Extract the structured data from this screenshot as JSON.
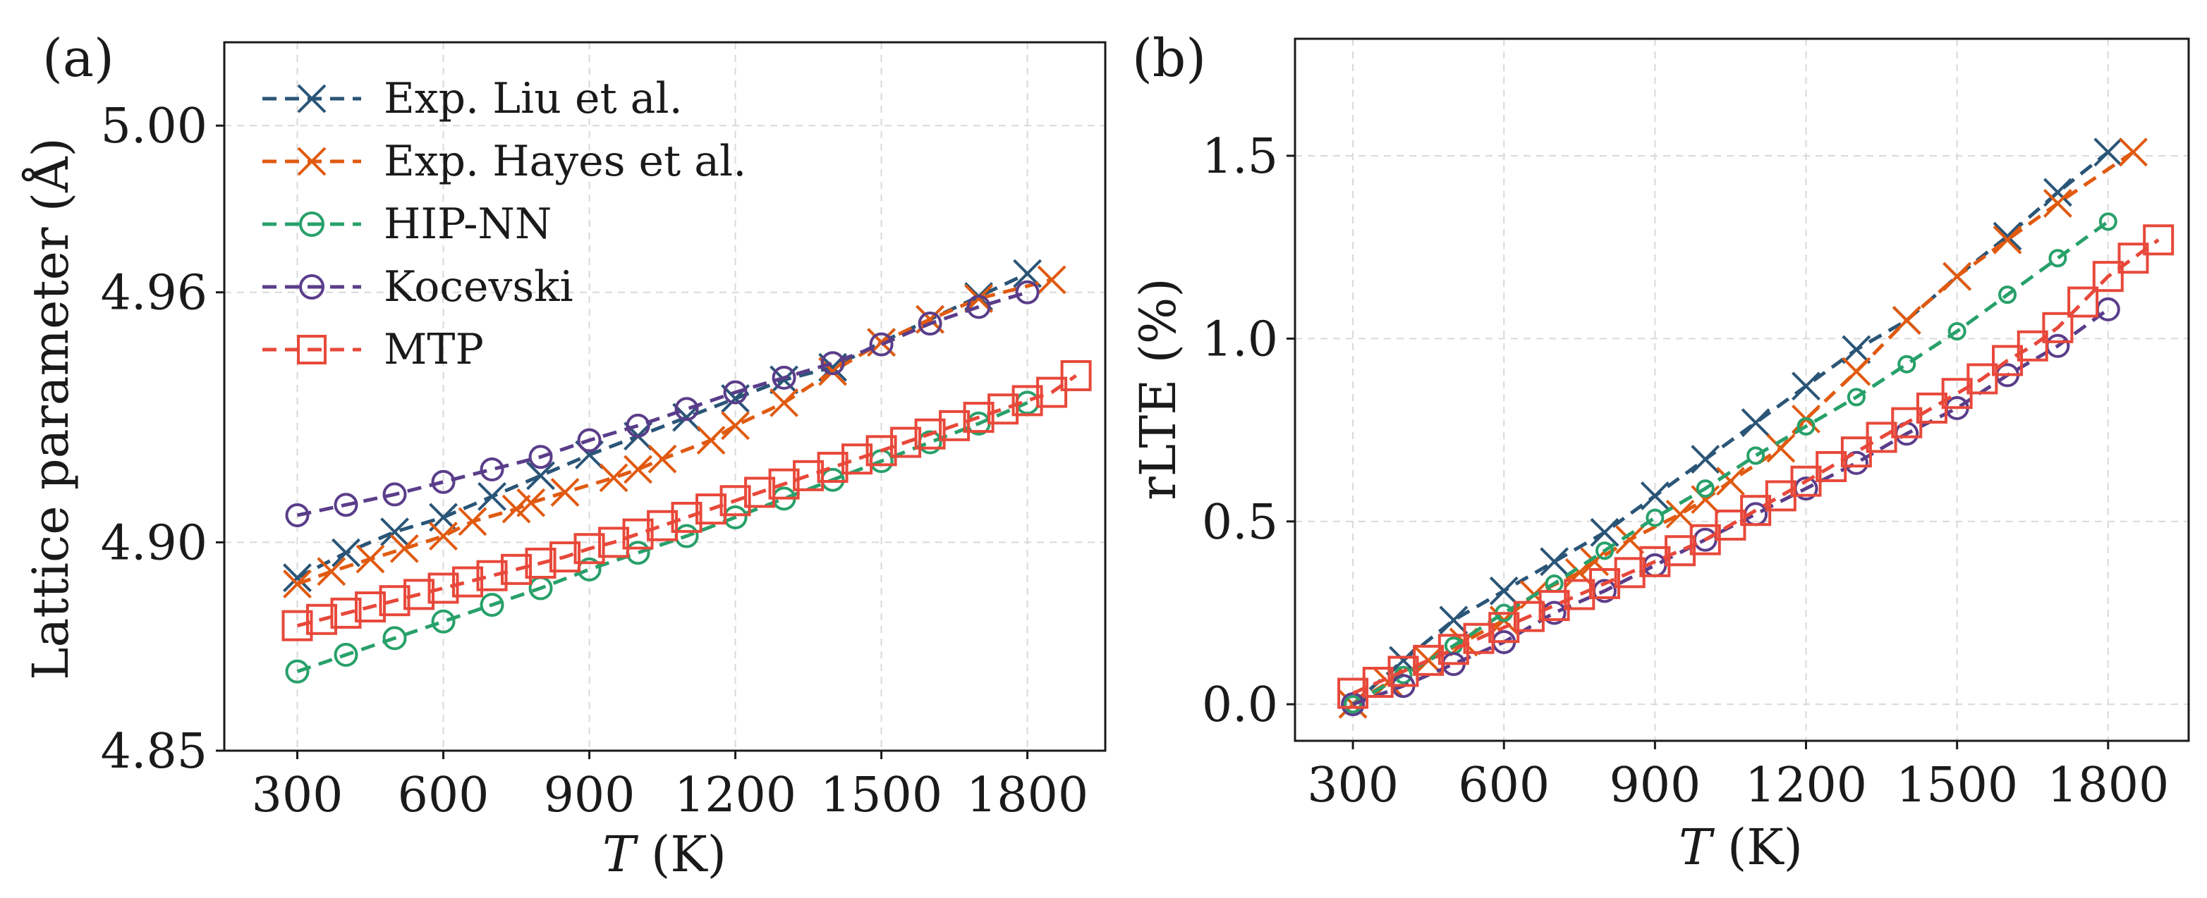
{
  "chart_data": [
    {
      "type": "line",
      "panel": "(a)",
      "title": "",
      "xlabel_var": "T",
      "xlabel_unit": " (K)",
      "ylabel": "Lattice parameter (Å)",
      "xlim": [
        150,
        1960
      ],
      "ylim": [
        4.85,
        5.02
      ],
      "xticks": [
        300,
        600,
        900,
        1200,
        1500,
        1800
      ],
      "xtick_labels": [
        "300",
        "600",
        "900",
        "1200",
        "1500",
        "1800"
      ],
      "yticks": [
        4.85,
        4.9,
        4.96,
        5.0
      ],
      "ytick_labels": [
        "4.85",
        "4.90",
        "4.96",
        "5.00"
      ],
      "grid": true,
      "legend_position": "top-left",
      "series": [
        {
          "name": "Exp. Liu et al.",
          "color": "#2a5577",
          "marker": "x",
          "markersize": 38,
          "dash": true,
          "x": [
            300,
            400,
            500,
            600,
            700,
            800,
            900,
            1000,
            1100,
            1200,
            1300,
            1400,
            1500,
            1600,
            1700,
            1800
          ],
          "y": [
            4.8915,
            4.8975,
            4.9025,
            4.906,
            4.911,
            4.916,
            4.921,
            4.9255,
            4.93,
            4.9345,
            4.939,
            4.942,
            4.948,
            4.9535,
            4.959,
            4.9645
          ]
        },
        {
          "name": "Exp. Hayes et al.",
          "color": "#e05a10",
          "marker": "x",
          "markersize": 38,
          "dash": true,
          "x": [
            300,
            370,
            450,
            520,
            600,
            660,
            750,
            780,
            850,
            950,
            1000,
            1050,
            1150,
            1200,
            1300,
            1400,
            1500,
            1600,
            1700,
            1850
          ],
          "y": [
            4.89,
            4.893,
            4.896,
            4.8985,
            4.9015,
            4.905,
            4.908,
            4.9095,
            4.912,
            4.9155,
            4.9175,
            4.92,
            4.9245,
            4.928,
            4.9335,
            4.941,
            4.948,
            4.9535,
            4.9585,
            4.963
          ]
        },
        {
          "name": "HIP-NN",
          "color": "#28a06a",
          "marker": "o",
          "markersize": 30,
          "dash": true,
          "x": [
            300,
            400,
            500,
            600,
            700,
            800,
            900,
            1000,
            1100,
            1200,
            1300,
            1400,
            1500,
            1600,
            1700,
            1800
          ],
          "y": [
            4.869,
            4.873,
            4.877,
            4.881,
            4.885,
            4.889,
            4.8935,
            4.8975,
            4.9015,
            4.906,
            4.9105,
            4.915,
            4.9195,
            4.924,
            4.9285,
            4.9335
          ]
        },
        {
          "name": "Kocevski",
          "color": "#5a3d8a",
          "marker": "o",
          "markersize": 30,
          "dash": true,
          "x": [
            300,
            400,
            500,
            600,
            700,
            800,
            900,
            1000,
            1100,
            1200,
            1300,
            1400,
            1500,
            1600,
            1700,
            1800
          ],
          "y": [
            4.9065,
            4.909,
            4.9115,
            4.9145,
            4.9175,
            4.9205,
            4.9245,
            4.928,
            4.932,
            4.936,
            4.9395,
            4.943,
            4.9475,
            4.9525,
            4.9565,
            4.96
          ]
        },
        {
          "name": "MTP",
          "color": "#e8483a",
          "marker": "s",
          "markersize": 40,
          "dash": true,
          "x": [
            300,
            350,
            400,
            450,
            500,
            550,
            600,
            650,
            700,
            750,
            800,
            850,
            900,
            950,
            1000,
            1050,
            1100,
            1150,
            1200,
            1250,
            1300,
            1350,
            1400,
            1450,
            1500,
            1550,
            1600,
            1650,
            1700,
            1750,
            1800,
            1850,
            1900
          ],
          "y": [
            4.88,
            4.8815,
            4.883,
            4.8845,
            4.886,
            4.8875,
            4.889,
            4.8905,
            4.892,
            4.8935,
            4.895,
            4.8965,
            4.8985,
            4.9,
            4.902,
            4.904,
            4.906,
            4.908,
            4.91,
            4.912,
            4.914,
            4.916,
            4.918,
            4.92,
            4.922,
            4.924,
            4.926,
            4.928,
            4.93,
            4.932,
            4.934,
            4.936,
            4.94
          ]
        }
      ]
    },
    {
      "type": "line",
      "panel": "(b)",
      "title": "",
      "xlabel_var": "T",
      "xlabel_unit": " (K)",
      "ylabel": "rLTE (%)",
      "xlim": [
        185,
        1960
      ],
      "ylim": [
        -0.1,
        1.82
      ],
      "xticks": [
        300,
        600,
        900,
        1200,
        1500,
        1800
      ],
      "xtick_labels": [
        "300",
        "600",
        "900",
        "1200",
        "1500",
        "1800"
      ],
      "yticks": [
        0.0,
        0.5,
        1.0,
        1.5
      ],
      "ytick_labels": [
        "0.0",
        "0.5",
        "1.0",
        "1.5"
      ],
      "grid": true,
      "series": [
        {
          "name": "Exp. Liu et al.",
          "color": "#2a5577",
          "marker": "x",
          "markersize": 38,
          "dash": true,
          "x": [
            300,
            400,
            500,
            600,
            700,
            800,
            900,
            1000,
            1100,
            1200,
            1300,
            1400,
            1500,
            1600,
            1700,
            1800
          ],
          "y": [
            0.0,
            0.12,
            0.23,
            0.31,
            0.39,
            0.47,
            0.57,
            0.67,
            0.77,
            0.87,
            0.97,
            1.05,
            1.17,
            1.28,
            1.4,
            1.51
          ]
        },
        {
          "name": "Exp. Hayes et al.",
          "color": "#e05a10",
          "marker": "x",
          "markersize": 38,
          "dash": true,
          "x": [
            300,
            370,
            450,
            520,
            600,
            660,
            750,
            780,
            850,
            950,
            1000,
            1050,
            1150,
            1200,
            1300,
            1400,
            1500,
            1600,
            1700,
            1850
          ],
          "y": [
            0.0,
            0.06,
            0.12,
            0.17,
            0.23,
            0.3,
            0.36,
            0.39,
            0.45,
            0.52,
            0.56,
            0.61,
            0.7,
            0.78,
            0.91,
            1.05,
            1.17,
            1.27,
            1.37,
            1.51
          ]
        },
        {
          "name": "HIP-NN",
          "color": "#28a06a",
          "marker": "o",
          "markersize": 22,
          "dash": true,
          "x": [
            300,
            400,
            500,
            600,
            700,
            800,
            900,
            1000,
            1100,
            1200,
            1300,
            1400,
            1500,
            1600,
            1700,
            1800
          ],
          "y": [
            0.0,
            0.08,
            0.16,
            0.25,
            0.33,
            0.42,
            0.51,
            0.59,
            0.68,
            0.76,
            0.84,
            0.93,
            1.02,
            1.12,
            1.22,
            1.32
          ]
        },
        {
          "name": "Kocevski",
          "color": "#5a3d8a",
          "marker": "o",
          "markersize": 30,
          "dash": true,
          "x": [
            300,
            400,
            500,
            600,
            700,
            800,
            900,
            1000,
            1100,
            1200,
            1300,
            1400,
            1500,
            1600,
            1700,
            1800
          ],
          "y": [
            0.0,
            0.05,
            0.11,
            0.17,
            0.25,
            0.31,
            0.38,
            0.45,
            0.52,
            0.59,
            0.66,
            0.74,
            0.81,
            0.9,
            0.98,
            1.08
          ]
        },
        {
          "name": "MTP",
          "color": "#e8483a",
          "marker": "s",
          "markersize": 40,
          "dash": true,
          "x": [
            300,
            350,
            400,
            450,
            500,
            550,
            600,
            650,
            700,
            750,
            800,
            850,
            900,
            950,
            1000,
            1050,
            1100,
            1150,
            1200,
            1250,
            1300,
            1350,
            1400,
            1450,
            1500,
            1550,
            1600,
            1650,
            1700,
            1750,
            1800,
            1850,
            1900
          ],
          "y": [
            0.03,
            0.06,
            0.09,
            0.12,
            0.15,
            0.18,
            0.21,
            0.24,
            0.27,
            0.3,
            0.33,
            0.36,
            0.39,
            0.42,
            0.45,
            0.49,
            0.53,
            0.57,
            0.61,
            0.65,
            0.69,
            0.73,
            0.77,
            0.81,
            0.85,
            0.89,
            0.94,
            0.98,
            1.03,
            1.1,
            1.17,
            1.22,
            1.27
          ]
        }
      ]
    }
  ]
}
